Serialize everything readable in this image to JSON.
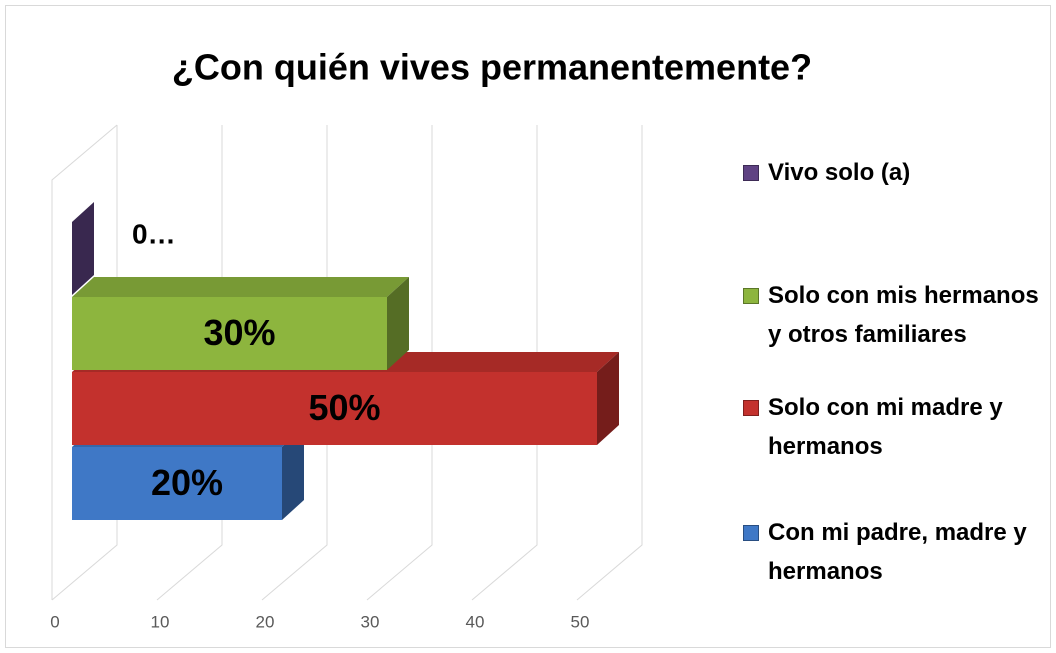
{
  "chart_data": {
    "type": "bar",
    "orientation": "horizontal",
    "title": "¿Con quién vives permanentemente?",
    "categories": [
      "Con mi padre, madre y hermanos",
      "Solo con mi madre y hermanos",
      "Solo con mis hermanos y otros familiares",
      "Vivo solo (a)"
    ],
    "values": [
      20,
      50,
      30,
      0
    ],
    "value_labels": [
      "20%",
      "50%",
      "30%",
      "0…"
    ],
    "colors": [
      "#3f78c6",
      "#c3312d",
      "#8db53e",
      "#5f4283"
    ],
    "xlim": [
      0,
      50
    ],
    "xticks": [
      0,
      10,
      20,
      30,
      40,
      50
    ],
    "grid": true,
    "legend": "right"
  }
}
